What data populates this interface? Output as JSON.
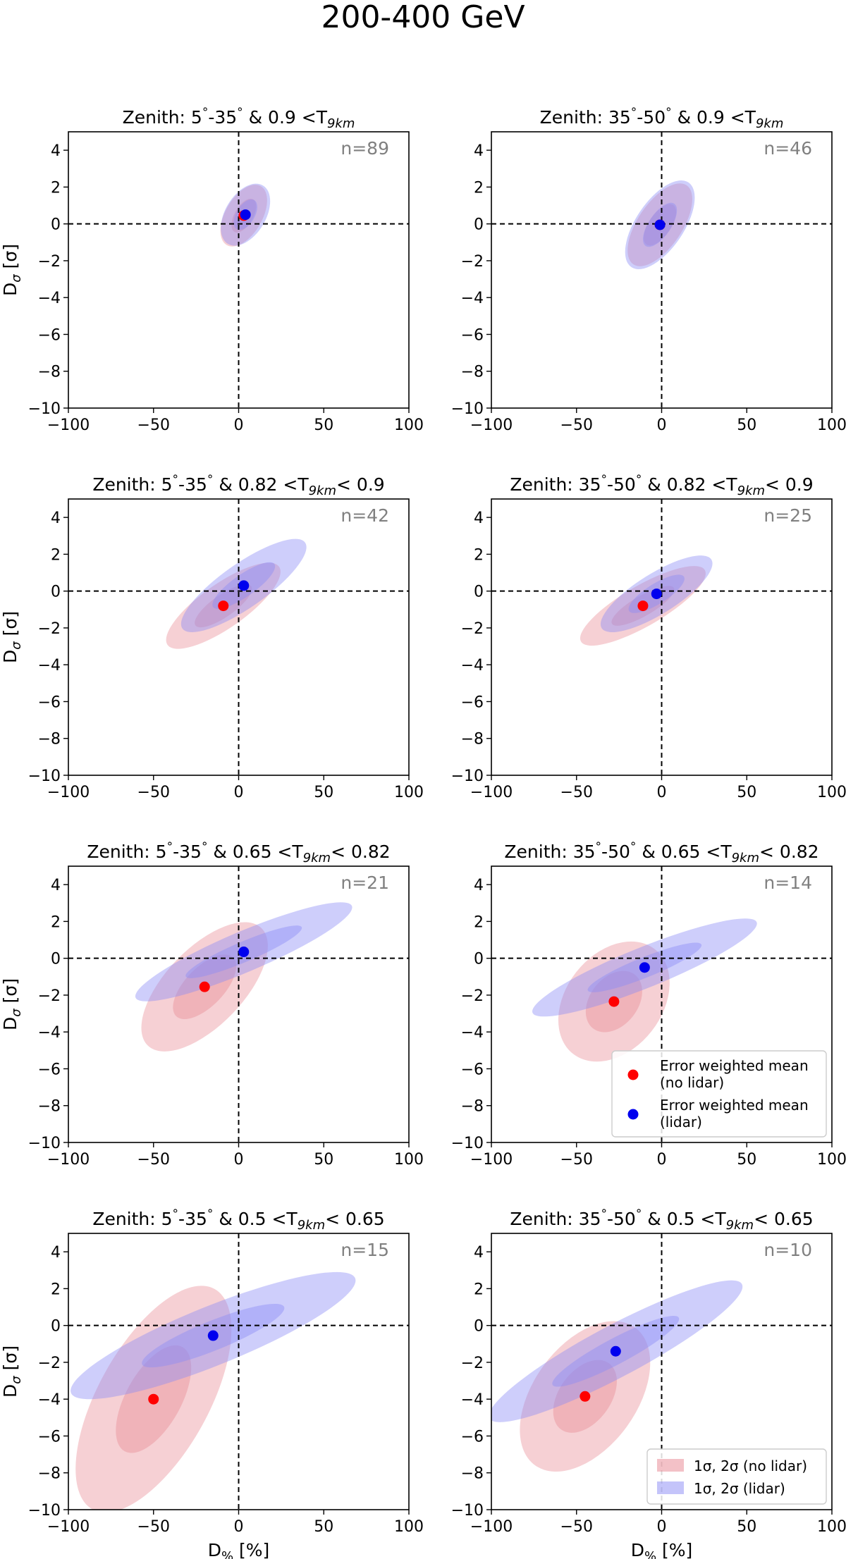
{
  "figure_title": "200-400 GeV",
  "colors": {
    "no_lidar_fill": "#e8848f",
    "lidar_fill": "#8a8af6",
    "no_lidar_point": "#ff0000",
    "lidar_point": "#0000ee",
    "count_text": "#808080"
  },
  "legend_points": [
    {
      "label_line1": "Error weighted mean",
      "label_line2": "(no lidar)",
      "color": "#ff0000"
    },
    {
      "label_line1": "Error weighted mean",
      "label_line2": "(lidar)",
      "color": "#0000ee"
    }
  ],
  "legend_regions": [
    {
      "label": "1σ, 2σ (no lidar)",
      "color": "#e8848f"
    },
    {
      "label": "1σ, 2σ (lidar)",
      "color": "#8a8af6"
    }
  ],
  "chart_data": [
    {
      "type": "scatter",
      "title": "Zenith: 5°-35° & 0.9 <T9km",
      "title_parts": {
        "zenith": "Zenith: 5",
        "deg": "°",
        "range": "-35",
        "cut": "& 0.9 <T",
        "sub": "9km",
        "tail": ""
      },
      "xlabel": "",
      "ylabel": "Dσ [σ]",
      "xlim": [
        -100,
        100
      ],
      "ylim": [
        -10,
        5
      ],
      "xticks": [
        -100,
        -50,
        0,
        50,
        100
      ],
      "yticks": [
        -10,
        -8,
        -6,
        -4,
        -2,
        0,
        2,
        4
      ],
      "count_label": "n=89",
      "series": [
        {
          "name": "no lidar",
          "mean": {
            "x": 3,
            "y": 0.45
          },
          "ellipse_1sigma": {
            "center": [
              3,
              0.45
            ],
            "semi_axes": [
              11,
              0.5
            ],
            "tilt": 60
          },
          "ellipse_2sigma": {
            "center": [
              3,
              0.45
            ],
            "semi_axes": [
              20,
              1.0
            ],
            "tilt": 60
          }
        },
        {
          "name": "lidar",
          "mean": {
            "x": 4,
            "y": 0.5
          },
          "ellipse_1sigma": {
            "center": [
              4,
              0.5
            ],
            "semi_axes": [
              10,
              0.5
            ],
            "tilt": 59
          },
          "ellipse_2sigma": {
            "center": [
              4,
              0.5
            ],
            "semi_axes": [
              20,
              1.1
            ],
            "tilt": 59
          }
        }
      ],
      "legend": "none"
    },
    {
      "type": "scatter",
      "title": "Zenith: 35°-50° & 0.9 <T9km",
      "title_parts": {
        "zenith": "Zenith: 35",
        "deg": "°",
        "range": "-50",
        "cut": "& 0.9 <T",
        "sub": "9km",
        "tail": ""
      },
      "xlabel": "",
      "ylabel": "",
      "xlim": [
        -100,
        100
      ],
      "ylim": [
        -10,
        5
      ],
      "xticks": [
        -100,
        -50,
        0,
        50,
        100
      ],
      "yticks": [
        -10,
        -8,
        -6,
        -4,
        -2,
        0,
        2,
        4
      ],
      "count_label": "n=46",
      "series": [
        {
          "name": "no lidar",
          "mean": {
            "x": -1,
            "y": -0.05
          },
          "ellipse_1sigma": {
            "center": [
              -1,
              -0.05
            ],
            "semi_axes": [
              14,
              0.6
            ],
            "tilt": 56
          },
          "ellipse_2sigma": {
            "center": [
              -1,
              -0.05
            ],
            "semi_axes": [
              28,
              1.2
            ],
            "tilt": 56
          }
        },
        {
          "name": "lidar",
          "mean": {
            "x": -1,
            "y": -0.05
          },
          "ellipse_1sigma": {
            "center": [
              -1,
              -0.05
            ],
            "semi_axes": [
              15,
              0.6
            ],
            "tilt": 56
          },
          "ellipse_2sigma": {
            "center": [
              -1,
              -0.05
            ],
            "semi_axes": [
              30,
              1.3
            ],
            "tilt": 56
          }
        }
      ],
      "legend": "none"
    },
    {
      "type": "scatter",
      "title": "Zenith: 5°-35° & 0.82 <T9km< 0.9",
      "title_parts": {
        "zenith": "Zenith: 5",
        "deg": "°",
        "range": "-35",
        "cut": "& 0.82 <T",
        "sub": "9km",
        "tail": "< 0.9"
      },
      "xlabel": "",
      "ylabel": "Dσ [σ]",
      "xlim": [
        -100,
        100
      ],
      "ylim": [
        -10,
        5
      ],
      "xticks": [
        -100,
        -50,
        0,
        50,
        100
      ],
      "yticks": [
        -10,
        -8,
        -6,
        -4,
        -2,
        0,
        2,
        4
      ],
      "count_label": "n=42",
      "series": [
        {
          "name": "no lidar",
          "mean": {
            "x": -9,
            "y": -0.8
          },
          "ellipse_1sigma": {
            "center": [
              -9,
              -0.8
            ],
            "semi_axes": [
              20,
              0.6
            ],
            "tilt": 35
          },
          "ellipse_2sigma": {
            "center": [
              -9,
              -0.8
            ],
            "semi_axes": [
              40,
              1.2
            ],
            "tilt": 35
          }
        },
        {
          "name": "lidar",
          "mean": {
            "x": 3,
            "y": 0.3
          },
          "ellipse_1sigma": {
            "center": [
              3,
              0.3
            ],
            "semi_axes": [
              22,
              0.6
            ],
            "tilt": 35
          },
          "ellipse_2sigma": {
            "center": [
              3,
              0.3
            ],
            "semi_axes": [
              44,
              1.2
            ],
            "tilt": 35
          }
        }
      ],
      "legend": "none"
    },
    {
      "type": "scatter",
      "title": "Zenith: 35°-50° & 0.82 <T9km< 0.9",
      "title_parts": {
        "zenith": "Zenith: 35",
        "deg": "°",
        "range": "-50",
        "cut": "& 0.82 <T",
        "sub": "9km",
        "tail": "< 0.9"
      },
      "xlabel": "",
      "ylabel": "",
      "xlim": [
        -100,
        100
      ],
      "ylim": [
        -10,
        5
      ],
      "xticks": [
        -100,
        -50,
        0,
        50,
        100
      ],
      "yticks": [
        -10,
        -8,
        -6,
        -4,
        -2,
        0,
        2,
        4
      ],
      "count_label": "n=25",
      "series": [
        {
          "name": "no lidar",
          "mean": {
            "x": -11,
            "y": -0.8
          },
          "ellipse_1sigma": {
            "center": [
              -11,
              -0.8
            ],
            "semi_axes": [
              21,
              0.55
            ],
            "tilt": 30
          },
          "ellipse_2sigma": {
            "center": [
              -11,
              -0.8
            ],
            "semi_axes": [
              42,
              1.1
            ],
            "tilt": 30
          }
        },
        {
          "name": "lidar",
          "mean": {
            "x": -3,
            "y": -0.15
          },
          "ellipse_1sigma": {
            "center": [
              -3,
              -0.15
            ],
            "semi_axes": [
              19,
              0.55
            ],
            "tilt": 32
          },
          "ellipse_2sigma": {
            "center": [
              -3,
              -0.15
            ],
            "semi_axes": [
              38,
              1.1
            ],
            "tilt": 32
          }
        }
      ],
      "legend": "none"
    },
    {
      "type": "scatter",
      "title": "Zenith: 5°-35° & 0.65 <T9km< 0.82",
      "title_parts": {
        "zenith": "Zenith: 5",
        "deg": "°",
        "range": "-35",
        "cut": "& 0.65 <T",
        "sub": "9km",
        "tail": "< 0.82"
      },
      "xlabel": "",
      "ylabel": "Dσ [σ]",
      "xlim": [
        -100,
        100
      ],
      "ylim": [
        -10,
        5
      ],
      "xticks": [
        -100,
        -50,
        0,
        50,
        100
      ],
      "yticks": [
        -10,
        -8,
        -6,
        -4,
        -2,
        0,
        2,
        4
      ],
      "count_label": "n=21",
      "series": [
        {
          "name": "no lidar",
          "mean": {
            "x": -20,
            "y": -1.55
          },
          "ellipse_1sigma": {
            "center": [
              -20,
              -1.55
            ],
            "semi_axes": [
              24,
              1.05
            ],
            "tilt": 46
          },
          "ellipse_2sigma": {
            "center": [
              -20,
              -1.55
            ],
            "semi_axes": [
              48,
              2.1
            ],
            "tilt": 46
          }
        },
        {
          "name": "lidar",
          "mean": {
            "x": 3,
            "y": 0.35
          },
          "ellipse_1sigma": {
            "center": [
              3,
              0.35
            ],
            "semi_axes": [
              37,
              0.55
            ],
            "tilt": 23
          },
          "ellipse_2sigma": {
            "center": [
              3,
              0.35
            ],
            "semi_axes": [
              69,
              1.1
            ],
            "tilt": 23
          }
        }
      ],
      "legend": "none"
    },
    {
      "type": "scatter",
      "title": "Zenith: 35°-50° & 0.65 <T9km< 0.82",
      "title_parts": {
        "zenith": "Zenith: 35",
        "deg": "°",
        "range": "-50",
        "cut": "& 0.65 <T",
        "sub": "9km",
        "tail": "< 0.82"
      },
      "xlabel": "",
      "ylabel": "",
      "xlim": [
        -100,
        100
      ],
      "ylim": [
        -10,
        5
      ],
      "xticks": [
        -100,
        -50,
        0,
        50,
        100
      ],
      "yticks": [
        -10,
        -8,
        -6,
        -4,
        -2,
        0,
        2,
        4
      ],
      "count_label": "n=14",
      "series": [
        {
          "name": "no lidar",
          "mean": {
            "x": -28,
            "y": -2.35
          },
          "ellipse_1sigma": {
            "center": [
              -28,
              -2.35
            ],
            "semi_axes": [
              20,
              1.3
            ],
            "tilt": 52
          },
          "ellipse_2sigma": {
            "center": [
              -28,
              -2.35
            ],
            "semi_axes": [
              39,
              2.6
            ],
            "tilt": 52
          }
        },
        {
          "name": "lidar",
          "mean": {
            "x": -10,
            "y": -0.5
          },
          "ellipse_1sigma": {
            "center": [
              -10,
              -0.5
            ],
            "semi_axes": [
              36,
              0.55
            ],
            "tilt": 22
          },
          "ellipse_2sigma": {
            "center": [
              -10,
              -0.5
            ],
            "semi_axes": [
              71,
              1.1
            ],
            "tilt": 22
          }
        }
      ],
      "legend": "points"
    },
    {
      "type": "scatter",
      "title": "Zenith: 5°-35° & 0.5 <T9km< 0.65",
      "title_parts": {
        "zenith": "Zenith: 5",
        "deg": "°",
        "range": "-35",
        "cut": "& 0.5 <T",
        "sub": "9km",
        "tail": "< 0.65"
      },
      "xlabel": "D% [%]",
      "ylabel": "Dσ [σ]",
      "xlim": [
        -100,
        100
      ],
      "ylim": [
        -10,
        5
      ],
      "xticks": [
        -100,
        -50,
        0,
        50,
        100
      ],
      "yticks": [
        -10,
        -8,
        -6,
        -4,
        -2,
        0,
        2,
        4
      ],
      "count_label": "n=15",
      "series": [
        {
          "name": "no lidar",
          "mean": {
            "x": -50,
            "y": -4.0
          },
          "ellipse_1sigma": {
            "center": [
              -50,
              -4.0
            ],
            "semi_axes": [
              35,
              1.5
            ],
            "tilt": 61
          },
          "ellipse_2sigma": {
            "center": [
              -50,
              -4.0
            ],
            "semi_axes": [
              74,
              3.0
            ],
            "tilt": 61
          }
        },
        {
          "name": "lidar",
          "mean": {
            "x": -15,
            "y": -0.55
          },
          "ellipse_1sigma": {
            "center": [
              -15,
              -0.55
            ],
            "semi_axes": [
              45,
              0.8
            ],
            "tilt": 22
          },
          "ellipse_2sigma": {
            "center": [
              -15,
              -0.55
            ],
            "semi_axes": [
              90,
              1.6
            ],
            "tilt": 22
          }
        }
      ],
      "legend": "none"
    },
    {
      "type": "scatter",
      "title": "Zenith: 35°-50° & 0.5 <T9km< 0.65",
      "title_parts": {
        "zenith": "Zenith: 35",
        "deg": "°",
        "range": "-50",
        "cut": "& 0.5 <T",
        "sub": "9km",
        "tail": "< 0.65"
      },
      "xlabel": "D% [%]",
      "ylabel": "",
      "xlim": [
        -100,
        100
      ],
      "ylim": [
        -10,
        5
      ],
      "xticks": [
        -100,
        -50,
        0,
        50,
        100
      ],
      "yticks": [
        -10,
        -8,
        -6,
        -4,
        -2,
        0,
        2,
        4
      ],
      "count_label": "n=10",
      "series": [
        {
          "name": "no lidar",
          "mean": {
            "x": -45,
            "y": -3.85
          },
          "ellipse_1sigma": {
            "center": [
              -45,
              -3.85
            ],
            "semi_axes": [
              24,
              1.4
            ],
            "tilt": 54
          },
          "ellipse_2sigma": {
            "center": [
              -45,
              -3.85
            ],
            "semi_axes": [
              50,
              2.8
            ],
            "tilt": 54
          }
        },
        {
          "name": "lidar",
          "mean": {
            "x": -27,
            "y": -1.4
          },
          "ellipse_1sigma": {
            "center": [
              -27,
              -1.4
            ],
            "semi_axes": [
              42,
              0.7
            ],
            "tilt": 28
          },
          "ellipse_2sigma": {
            "center": [
              -27,
              -1.4
            ],
            "semi_axes": [
              84,
              1.4
            ],
            "tilt": 28
          }
        }
      ],
      "legend": "regions"
    }
  ]
}
